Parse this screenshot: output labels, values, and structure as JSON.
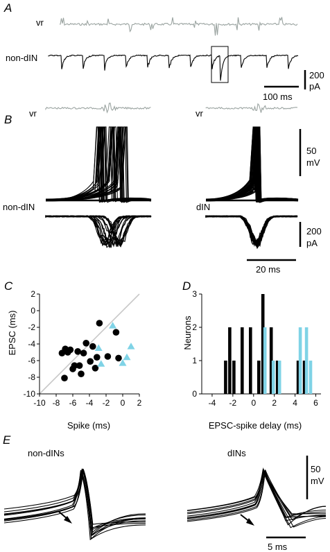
{
  "panels": {
    "A": {
      "letter": "A",
      "labels": {
        "vr": "vr",
        "cell": "non-dIN"
      },
      "scale_current": {
        "value": "200",
        "unit": "pA"
      },
      "scale_time": "100 ms"
    },
    "B": {
      "letter": "B",
      "left": {
        "vr": "vr",
        "cell": "non-dIN"
      },
      "right": {
        "vr": "vr",
        "cell": "dIN"
      },
      "scale_voltage": {
        "value": "50",
        "unit": "mV"
      },
      "scale_current": {
        "value": "200",
        "unit": "pA"
      },
      "scale_time": "20 ms"
    },
    "E": {
      "letter": "E",
      "left_title": "non-dINs",
      "right_title": "dINs",
      "scale_voltage": {
        "value": "50",
        "unit": "mV"
      },
      "scale_time": "5 ms"
    }
  },
  "colors": {
    "black": "#000000",
    "cyan": "#7fd3e6",
    "grey": "#9aa3a0",
    "diag": "#c8c8c8"
  },
  "chart_data": [
    {
      "letter": "C",
      "type": "scatter",
      "xlabel": "Spike (ms)",
      "ylabel": "EPSC (ms)",
      "xlim": [
        -10,
        2
      ],
      "ylim": [
        -10,
        2
      ],
      "xticks": [
        "-10",
        "-8",
        "-6",
        "-4",
        "-2",
        "0",
        "2"
      ],
      "yticks": [
        "2",
        "0",
        "-2",
        "-4",
        "-6",
        "-8",
        "-10"
      ],
      "diagonal": true,
      "series": [
        {
          "marker": "circle",
          "color": "#000000",
          "x": [
            -7.3,
            -6.9,
            -6.6,
            -6.3,
            -6.0,
            -5.8,
            -5.4,
            -5.2,
            -5.0,
            -4.7,
            -4.4,
            -3.9,
            -3.6,
            -3.3,
            -3.1,
            -2.8,
            -1.8,
            -0.8,
            -0.5,
            -7.0
          ],
          "y": [
            -5.1,
            -4.6,
            -5.0,
            -4.7,
            -7.0,
            -6.6,
            -4.9,
            -6.6,
            -7.6,
            -5.1,
            -3.9,
            -6.1,
            -4.3,
            -6.9,
            -5.6,
            -1.5,
            -5.5,
            -2.6,
            -5.7,
            -8.1
          ]
        },
        {
          "marker": "triangle",
          "color": "#7fd3e6",
          "x": [
            -2.9,
            -2.6,
            -1.2,
            0.0,
            0.5,
            1.0
          ],
          "y": [
            -4.5,
            -6.4,
            -1.8,
            -6.3,
            -5.6,
            -4.3
          ]
        }
      ]
    },
    {
      "letter": "D",
      "type": "bar",
      "xlabel": "EPSC-spike delay (ms)",
      "ylabel": "Neurons",
      "xlim": [
        -5,
        6.5
      ],
      "ylim": [
        0,
        3
      ],
      "xticks": [
        "-4",
        "-2",
        "0",
        "2",
        "4",
        "6"
      ],
      "yticks": [
        "0",
        "1",
        "2",
        "3"
      ],
      "series": [
        {
          "color": "#000000",
          "x": [
            -2.7,
            -2.3,
            -1.9,
            -1.1,
            -0.3,
            0.5,
            0.9,
            1.7,
            2.3,
            4.3,
            4.9
          ],
          "values": [
            1,
            2,
            1,
            2,
            2,
            1,
            3,
            2,
            1,
            1,
            1
          ]
        },
        {
          "color": "#7fd3e6",
          "x": [
            1.1,
            1.9,
            2.5,
            4.5,
            5.1,
            5.5
          ],
          "values": [
            2,
            1,
            1,
            2,
            2,
            1
          ]
        }
      ]
    }
  ]
}
